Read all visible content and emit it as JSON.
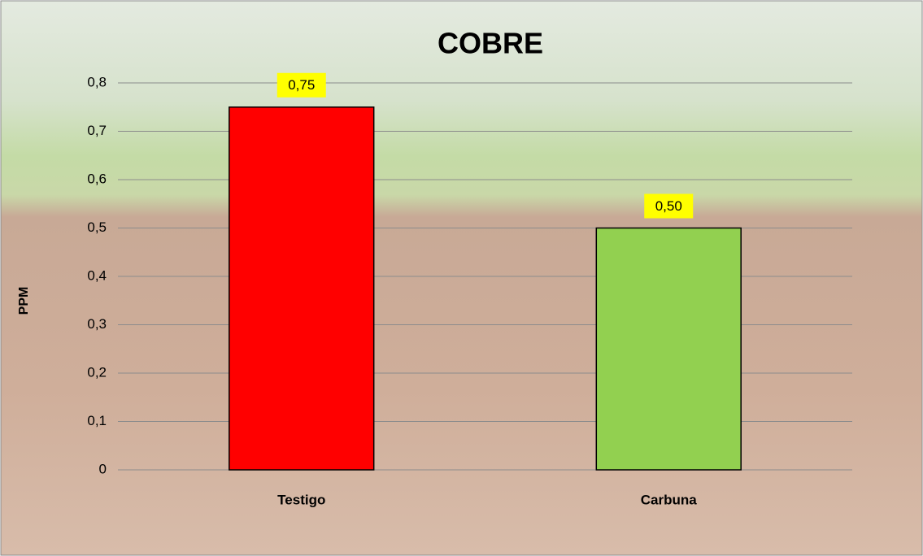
{
  "chart_data": {
    "type": "bar",
    "title": "COBRE",
    "y_label": "PPM",
    "categories": [
      "Testigo",
      "Carbuna"
    ],
    "values": [
      0.75,
      0.5
    ],
    "value_labels": [
      "0,75",
      "0,50"
    ],
    "colors": [
      "#ff0000",
      "#92d050"
    ],
    "label_background": "#ffff00",
    "ylim": [
      0,
      0.8
    ],
    "yticks": [
      0,
      {
        "value": 0.1,
        "label": "0,1"
      },
      {
        "value": 0.2,
        "label": "0,2"
      },
      {
        "value": 0.3,
        "label": "0,3"
      },
      {
        "value": 0.4,
        "label": "0,4"
      },
      {
        "value": 0.5,
        "label": "0,5"
      },
      {
        "value": 0.6,
        "label": "0,6"
      },
      {
        "value": 0.7,
        "label": "0,7"
      },
      {
        "value": 0.8,
        "label": "0,8"
      }
    ],
    "grid": true
  }
}
